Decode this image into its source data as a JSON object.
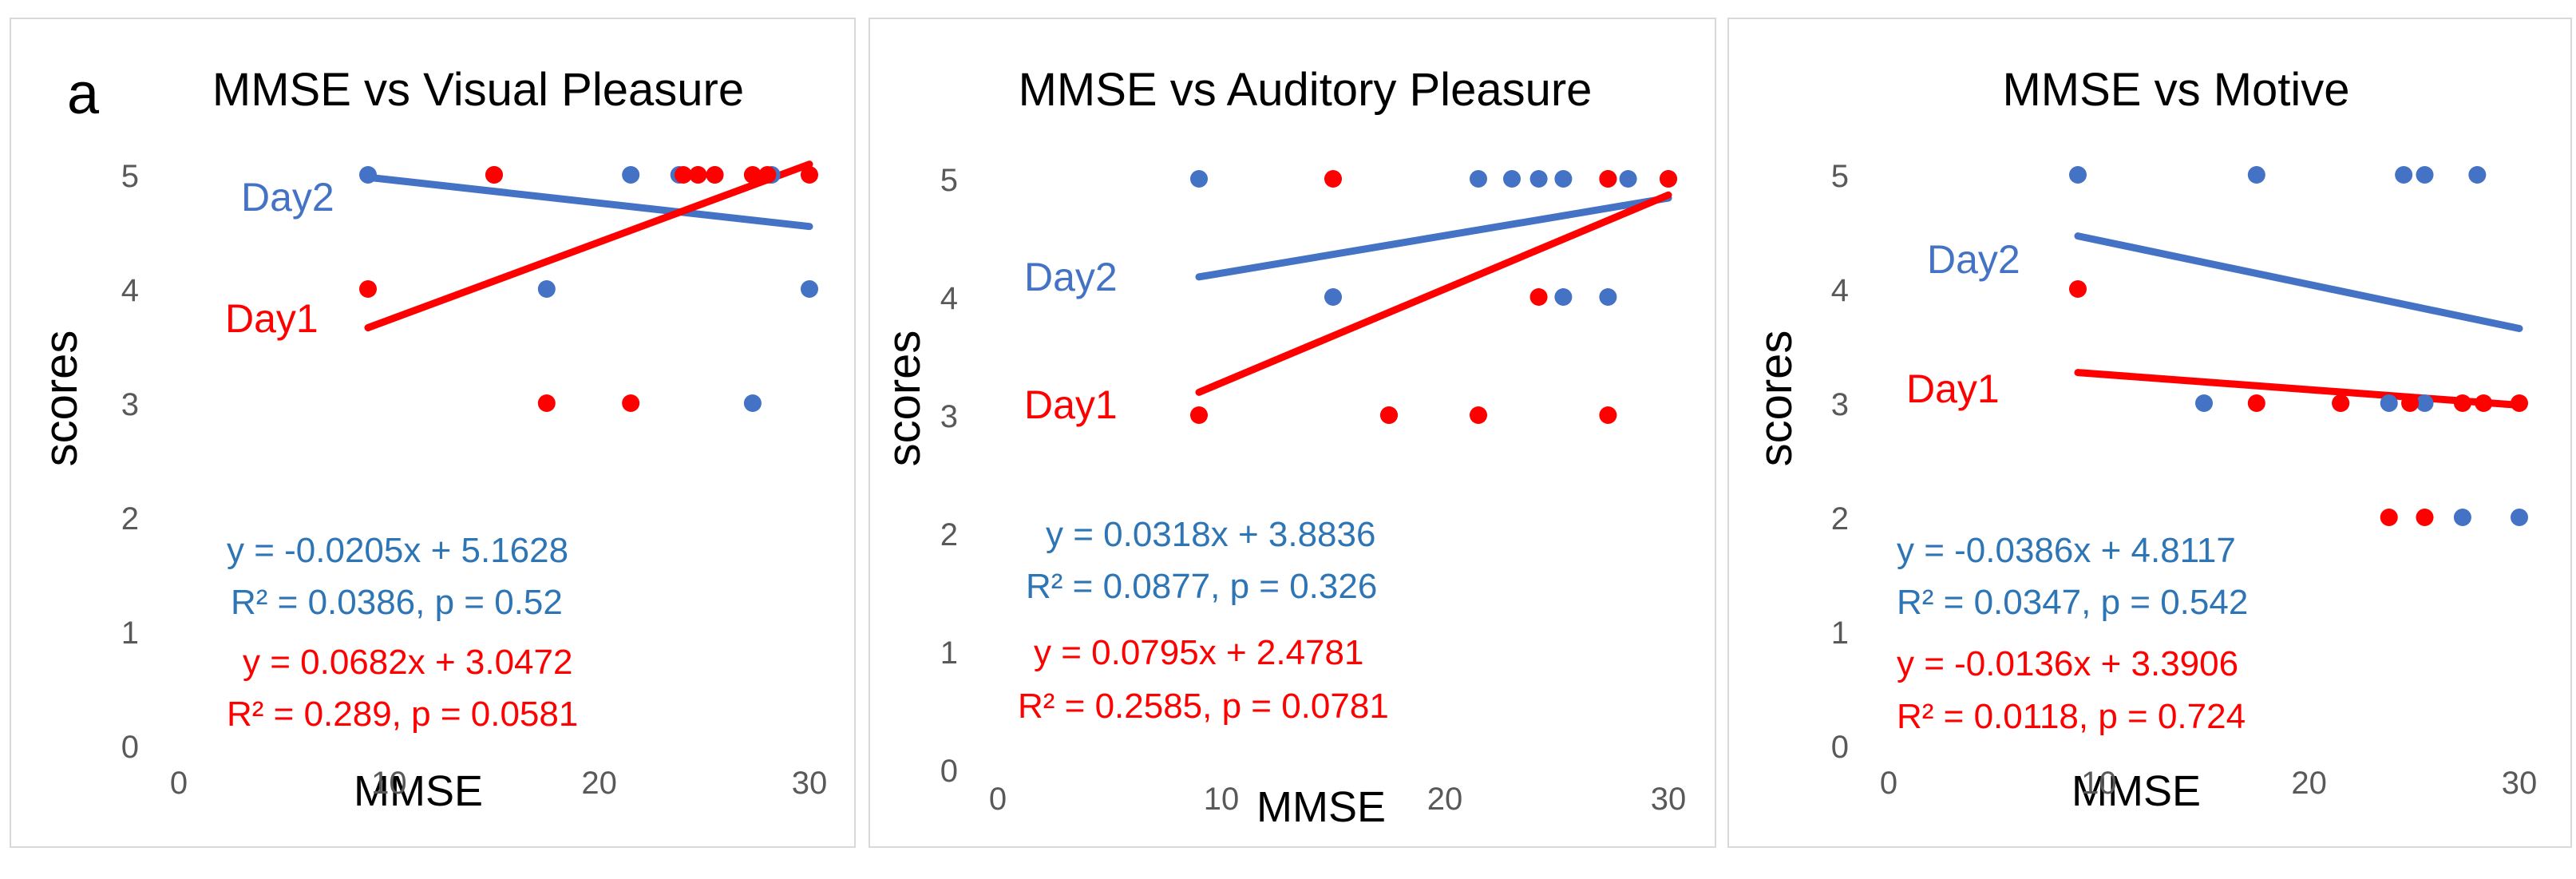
{
  "colors": {
    "day1": "#ff0000",
    "day2": "#4472c4",
    "day2_text": "#2e75b6",
    "axis_text": "#595959",
    "grid_text": "#000000"
  },
  "chart_data": [
    {
      "type": "scatter",
      "panel_label": "a",
      "title": "MMSE vs Visual Pleasure",
      "xlabel": "MMSE",
      "ylabel": "scores",
      "xlim": [
        0,
        30
      ],
      "ylim": [
        0,
        5
      ],
      "xticks": [
        "0",
        "10",
        "20",
        "30"
      ],
      "yticks": [
        "0",
        "1",
        "2",
        "3",
        "4",
        "5"
      ],
      "series": [
        {
          "name": "Day2",
          "color": "#4472c4",
          "x": [
            9,
            15,
            17.5,
            21.5,
            23.8,
            24.7,
            25.5,
            27.3,
            28.2,
            30
          ],
          "y": [
            5,
            5,
            4,
            5,
            5,
            5,
            5,
            3,
            5,
            4
          ],
          "trend": {
            "slope": -0.0205,
            "intercept": 5.1628,
            "x_range": [
              9,
              30
            ]
          },
          "equation": "y = -0.0205x + 5.1628",
          "stats": "R² = 0.0386, p = 0.52"
        },
        {
          "name": "Day1",
          "color": "#ff0000",
          "x": [
            9,
            15,
            17.5,
            21.5,
            24,
            24.7,
            25.5,
            27.3,
            28,
            30
          ],
          "y": [
            4,
            5,
            3,
            3,
            5,
            5,
            5,
            5,
            5,
            5
          ],
          "trend": {
            "slope": 0.0682,
            "intercept": 3.0472,
            "x_range": [
              9,
              30
            ]
          },
          "equation": "y = 0.0682x + 3.0472",
          "stats": "R² = 0.289, p = 0.0581"
        }
      ]
    },
    {
      "type": "scatter",
      "panel_label": "",
      "title": "MMSE vs Auditory Pleasure",
      "xlabel": "MMSE",
      "ylabel": "scores",
      "xlim": [
        0,
        30
      ],
      "ylim": [
        0,
        5
      ],
      "xticks": [
        "0",
        "10",
        "20",
        "30"
      ],
      "yticks": [
        "0",
        "1",
        "2",
        "3",
        "4",
        "5"
      ],
      "series": [
        {
          "name": "Day2",
          "color": "#4472c4",
          "x": [
            9,
            15,
            17.5,
            21.5,
            23,
            24.2,
            25.3,
            25.3,
            27.3,
            27.3,
            28.2,
            30
          ],
          "y": [
            5,
            4,
            3,
            5,
            5,
            5,
            5,
            4,
            4,
            5,
            5,
            5
          ],
          "trend": {
            "slope": 0.0318,
            "intercept": 3.8836,
            "x_range": [
              9,
              30
            ]
          },
          "equation": "y = 0.0318x + 3.8836",
          "stats": "R² = 0.0877, p = 0.326"
        },
        {
          "name": "Day1",
          "color": "#ff0000",
          "x": [
            9,
            15,
            17.5,
            21.5,
            24.2,
            27.3,
            27.3,
            30
          ],
          "y": [
            3,
            5,
            3,
            3,
            4,
            3,
            5,
            5
          ],
          "trend": {
            "slope": 0.0795,
            "intercept": 2.4781,
            "x_range": [
              9,
              30
            ]
          },
          "equation": "y = 0.0795x + 2.4781",
          "stats": "R² = 0.2585, p = 0.0781"
        }
      ]
    },
    {
      "type": "scatter",
      "panel_label": "",
      "title": "MMSE vs Motive",
      "xlabel": "MMSE",
      "ylabel": "scores",
      "xlim": [
        0,
        30
      ],
      "ylim": [
        0,
        5
      ],
      "xticks": [
        "0",
        "10",
        "20",
        "30"
      ],
      "yticks": [
        "0",
        "1",
        "2",
        "3",
        "4",
        "5"
      ],
      "series": [
        {
          "name": "Day2",
          "color": "#4472c4",
          "x": [
            9,
            15,
            17.5,
            21.5,
            23.8,
            24.5,
            25.5,
            25.5,
            27.3,
            28,
            30
          ],
          "y": [
            5,
            3,
            5,
            3,
            3,
            5,
            5,
            3,
            2,
            5,
            2
          ],
          "trend": {
            "slope": -0.0386,
            "intercept": 4.8117,
            "x_range": [
              9,
              30
            ]
          },
          "equation": "y = -0.0386x + 4.8117",
          "stats": "R² = 0.0347, p = 0.542"
        },
        {
          "name": "Day1",
          "color": "#ff0000",
          "x": [
            9,
            17.5,
            21.5,
            23.8,
            24.8,
            25.5,
            27.3,
            28.3,
            30
          ],
          "y": [
            4,
            3,
            3,
            2,
            3,
            2,
            3,
            3,
            3
          ],
          "trend": {
            "slope": -0.0136,
            "intercept": 3.3906,
            "x_range": [
              9,
              30
            ]
          },
          "equation": "y = -0.0136x + 3.3906",
          "stats": "R² = 0.0118, p = 0.724"
        }
      ]
    }
  ]
}
